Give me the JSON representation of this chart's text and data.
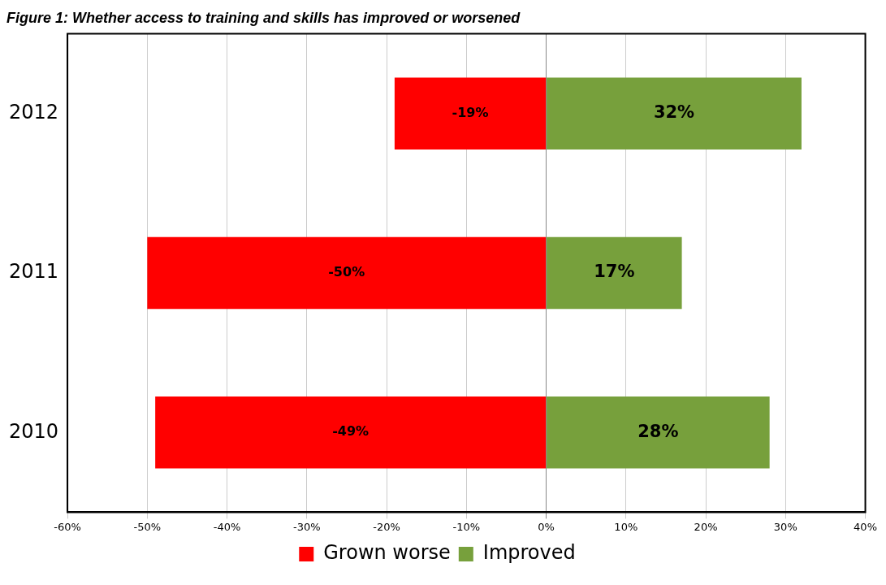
{
  "chart_data": {
    "type": "bar",
    "orientation": "horizontal",
    "stacked": true,
    "title": "Figure 1: Whether access to training and skills has improved or worsened",
    "categories": [
      "2012",
      "2011",
      "2010"
    ],
    "series": [
      {
        "name": "Improved",
        "color": "#77a03c",
        "values": [
          32,
          17,
          28
        ],
        "value_labels": [
          "32%",
          "17%",
          "28%"
        ]
      },
      {
        "name": "Grown worse",
        "color": "#ff0000",
        "values": [
          -19,
          -50,
          -49
        ],
        "value_labels": [
          "-19%",
          "-50%",
          "-49%"
        ]
      }
    ],
    "xlim": [
      -60,
      40
    ],
    "xticks": [
      {
        "value": -60,
        "label": "-60%"
      },
      {
        "value": -50,
        "label": "-50%"
      },
      {
        "value": -40,
        "label": "-40%"
      },
      {
        "value": -30,
        "label": "-30%"
      },
      {
        "value": -20,
        "label": "-20%"
      },
      {
        "value": -10,
        "label": "-10%"
      },
      {
        "value": 0,
        "label": "0%"
      },
      {
        "value": 10,
        "label": "10%"
      },
      {
        "value": 20,
        "label": "20%"
      },
      {
        "value": 30,
        "label": "30%"
      },
      {
        "value": 40,
        "label": "40%"
      }
    ],
    "grid": "x",
    "legend": "bottom"
  }
}
